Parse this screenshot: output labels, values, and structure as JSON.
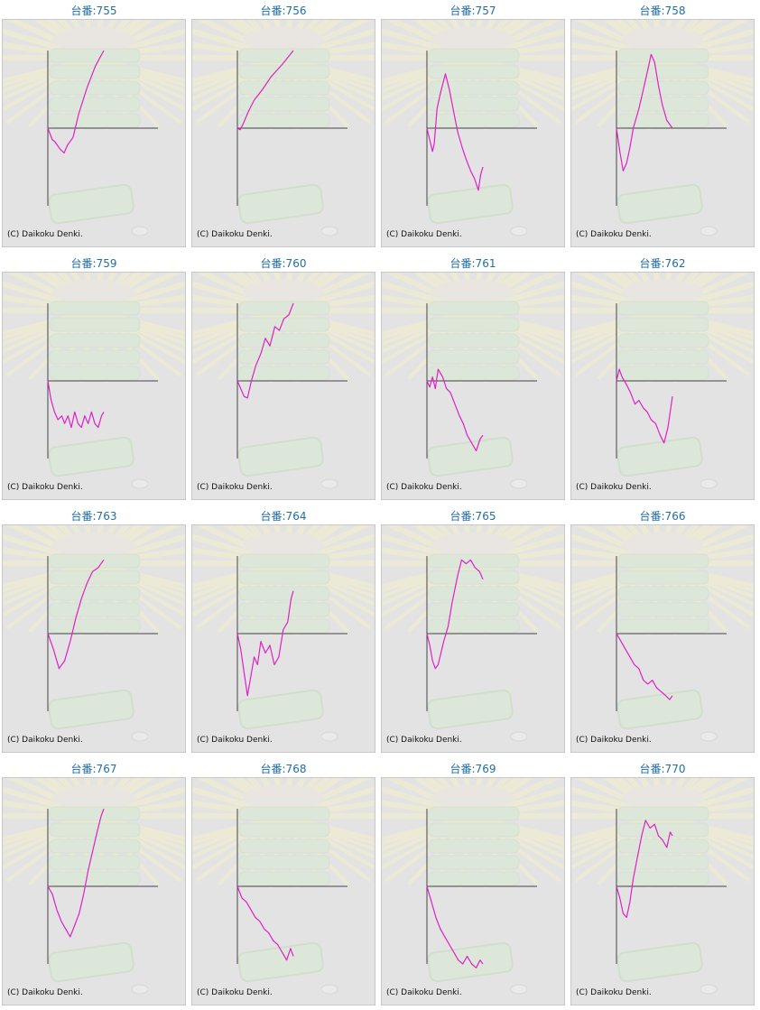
{
  "copyright": "(C) Daikoku Denki.",
  "colors": {
    "line": "#e020c8",
    "axis": "#444444",
    "title": "#1f6ea8",
    "background": "#e3e3e3"
  },
  "chart_data": [
    {
      "type": "line",
      "title": "台番:755",
      "x": [
        0,
        0.08,
        0.12,
        0.17,
        0.22,
        0.29,
        0.35,
        0.45,
        0.55,
        0.7,
        0.85,
        1.0
      ],
      "y": [
        0,
        -0.15,
        -0.17,
        -0.22,
        -0.27,
        -0.32,
        -0.22,
        -0.12,
        0.18,
        0.52,
        0.8,
        1.0
      ]
    },
    {
      "type": "line",
      "title": "台番:756",
      "x": [
        0,
        0.05,
        0.1,
        0.2,
        0.3,
        0.45,
        0.6,
        0.8,
        1.0
      ],
      "y": [
        0,
        -0.02,
        0.05,
        0.22,
        0.36,
        0.5,
        0.66,
        0.82,
        1.0
      ]
    },
    {
      "type": "line",
      "title": "台番:757",
      "x": [
        0,
        0.05,
        0.1,
        0.13,
        0.18,
        0.24,
        0.33,
        0.4,
        0.48,
        0.55,
        0.63,
        0.7,
        0.78,
        0.85,
        0.92,
        0.96,
        1.0
      ],
      "y": [
        0,
        -0.15,
        -0.3,
        -0.2,
        0.25,
        0.45,
        0.7,
        0.5,
        0.2,
        -0.05,
        -0.25,
        -0.4,
        -0.55,
        -0.65,
        -0.8,
        -0.6,
        -0.5
      ]
    },
    {
      "type": "line",
      "title": "台番:758",
      "x": [
        0,
        0.06,
        0.12,
        0.18,
        0.24,
        0.3,
        0.4,
        0.48,
        0.55,
        0.62,
        0.68,
        0.75,
        0.82,
        0.9,
        1.0
      ],
      "y": [
        0,
        -0.3,
        -0.55,
        -0.45,
        -0.25,
        0.0,
        0.25,
        0.5,
        0.72,
        0.95,
        0.85,
        0.55,
        0.3,
        0.1,
        0.0
      ]
    },
    {
      "type": "line",
      "title": "台番:759",
      "x": [
        0,
        0.06,
        0.12,
        0.18,
        0.25,
        0.3,
        0.36,
        0.42,
        0.48,
        0.54,
        0.6,
        0.66,
        0.72,
        0.78,
        0.84,
        0.9,
        0.96,
        1.0
      ],
      "y": [
        0,
        -0.25,
        -0.4,
        -0.5,
        -0.45,
        -0.55,
        -0.45,
        -0.6,
        -0.4,
        -0.55,
        -0.6,
        -0.45,
        -0.55,
        -0.4,
        -0.55,
        -0.6,
        -0.45,
        -0.4
      ]
    },
    {
      "type": "line",
      "title": "台番:760",
      "x": [
        0,
        0.06,
        0.12,
        0.18,
        0.25,
        0.33,
        0.42,
        0.5,
        0.58,
        0.67,
        0.75,
        0.83,
        0.92,
        1.0
      ],
      "y": [
        0,
        -0.1,
        -0.2,
        -0.22,
        0.0,
        0.2,
        0.35,
        0.55,
        0.45,
        0.7,
        0.65,
        0.8,
        0.85,
        1.0
      ]
    },
    {
      "type": "line",
      "title": "台番:761",
      "x": [
        0,
        0.05,
        0.1,
        0.15,
        0.2,
        0.28,
        0.35,
        0.42,
        0.5,
        0.58,
        0.65,
        0.72,
        0.8,
        0.88,
        0.95,
        1.0
      ],
      "y": [
        0,
        -0.08,
        0.05,
        -0.1,
        0.15,
        0.05,
        -0.1,
        -0.15,
        -0.3,
        -0.45,
        -0.55,
        -0.7,
        -0.8,
        -0.9,
        -0.75,
        -0.7
      ]
    },
    {
      "type": "line",
      "title": "台番:762",
      "x": [
        0,
        0.05,
        0.1,
        0.18,
        0.25,
        0.33,
        0.4,
        0.48,
        0.55,
        0.62,
        0.7,
        0.78,
        0.85,
        0.92,
        1.0
      ],
      "y": [
        0,
        0.15,
        0.05,
        -0.05,
        -0.15,
        -0.3,
        -0.25,
        -0.35,
        -0.4,
        -0.5,
        -0.55,
        -0.7,
        -0.8,
        -0.6,
        -0.2
      ]
    },
    {
      "type": "line",
      "title": "台番:763",
      "x": [
        0,
        0.1,
        0.2,
        0.3,
        0.4,
        0.5,
        0.6,
        0.7,
        0.8,
        0.9,
        1.0
      ],
      "y": [
        0,
        -0.2,
        -0.45,
        -0.35,
        -0.1,
        0.2,
        0.45,
        0.65,
        0.8,
        0.85,
        0.95
      ]
    },
    {
      "type": "line",
      "title": "台番:764",
      "x": [
        0,
        0.06,
        0.12,
        0.18,
        0.24,
        0.3,
        0.36,
        0.42,
        0.5,
        0.58,
        0.66,
        0.74,
        0.82,
        0.9,
        0.96,
        1.0
      ],
      "y": [
        0,
        -0.2,
        -0.5,
        -0.8,
        -0.55,
        -0.3,
        -0.4,
        -0.1,
        -0.25,
        -0.15,
        -0.4,
        -0.3,
        0.05,
        0.15,
        0.45,
        0.55
      ]
    },
    {
      "type": "line",
      "title": "台番:765",
      "x": [
        0,
        0.05,
        0.1,
        0.15,
        0.2,
        0.25,
        0.3,
        0.38,
        0.45,
        0.55,
        0.62,
        0.7,
        0.78,
        0.86,
        0.94,
        1.0
      ],
      "y": [
        0,
        -0.15,
        -0.35,
        -0.45,
        -0.4,
        -0.25,
        -0.1,
        0.1,
        0.4,
        0.75,
        0.95,
        0.9,
        0.95,
        0.85,
        0.8,
        0.7
      ]
    },
    {
      "type": "line",
      "title": "台番:766",
      "x": [
        0,
        0.08,
        0.16,
        0.24,
        0.32,
        0.4,
        0.48,
        0.56,
        0.64,
        0.72,
        0.8,
        0.88,
        0.95,
        1.0
      ],
      "y": [
        0,
        -0.1,
        -0.2,
        -0.3,
        -0.4,
        -0.45,
        -0.6,
        -0.65,
        -0.6,
        -0.7,
        -0.75,
        -0.8,
        -0.85,
        -0.8
      ]
    },
    {
      "type": "line",
      "title": "台番:767",
      "x": [
        0,
        0.08,
        0.16,
        0.24,
        0.32,
        0.4,
        0.48,
        0.56,
        0.64,
        0.72,
        0.8,
        0.88,
        0.95,
        1.0
      ],
      "y": [
        0,
        -0.1,
        -0.3,
        -0.45,
        -0.55,
        -0.65,
        -0.5,
        -0.35,
        -0.1,
        0.2,
        0.45,
        0.7,
        0.9,
        1.0
      ]
    },
    {
      "type": "line",
      "title": "台番:768",
      "x": [
        0,
        0.08,
        0.16,
        0.24,
        0.32,
        0.4,
        0.48,
        0.56,
        0.64,
        0.72,
        0.8,
        0.88,
        0.95,
        1.0
      ],
      "y": [
        0,
        -0.15,
        -0.2,
        -0.3,
        -0.4,
        -0.45,
        -0.55,
        -0.6,
        -0.7,
        -0.75,
        -0.85,
        -0.95,
        -0.8,
        -0.9
      ]
    },
    {
      "type": "line",
      "title": "台番:769",
      "x": [
        0,
        0.08,
        0.16,
        0.24,
        0.32,
        0.4,
        0.48,
        0.56,
        0.64,
        0.72,
        0.8,
        0.88,
        0.95,
        1.0
      ],
      "y": [
        0,
        -0.2,
        -0.4,
        -0.55,
        -0.65,
        -0.75,
        -0.85,
        -0.95,
        -1.0,
        -0.9,
        -1.0,
        -1.05,
        -0.95,
        -1.0
      ]
    },
    {
      "type": "line",
      "title": "台番:770",
      "x": [
        0,
        0.06,
        0.12,
        0.18,
        0.24,
        0.3,
        0.38,
        0.45,
        0.52,
        0.6,
        0.68,
        0.75,
        0.82,
        0.9,
        0.96,
        1.0
      ],
      "y": [
        0,
        -0.15,
        -0.35,
        -0.4,
        -0.2,
        0.1,
        0.4,
        0.65,
        0.85,
        0.75,
        0.8,
        0.65,
        0.6,
        0.5,
        0.7,
        0.65
      ]
    }
  ]
}
